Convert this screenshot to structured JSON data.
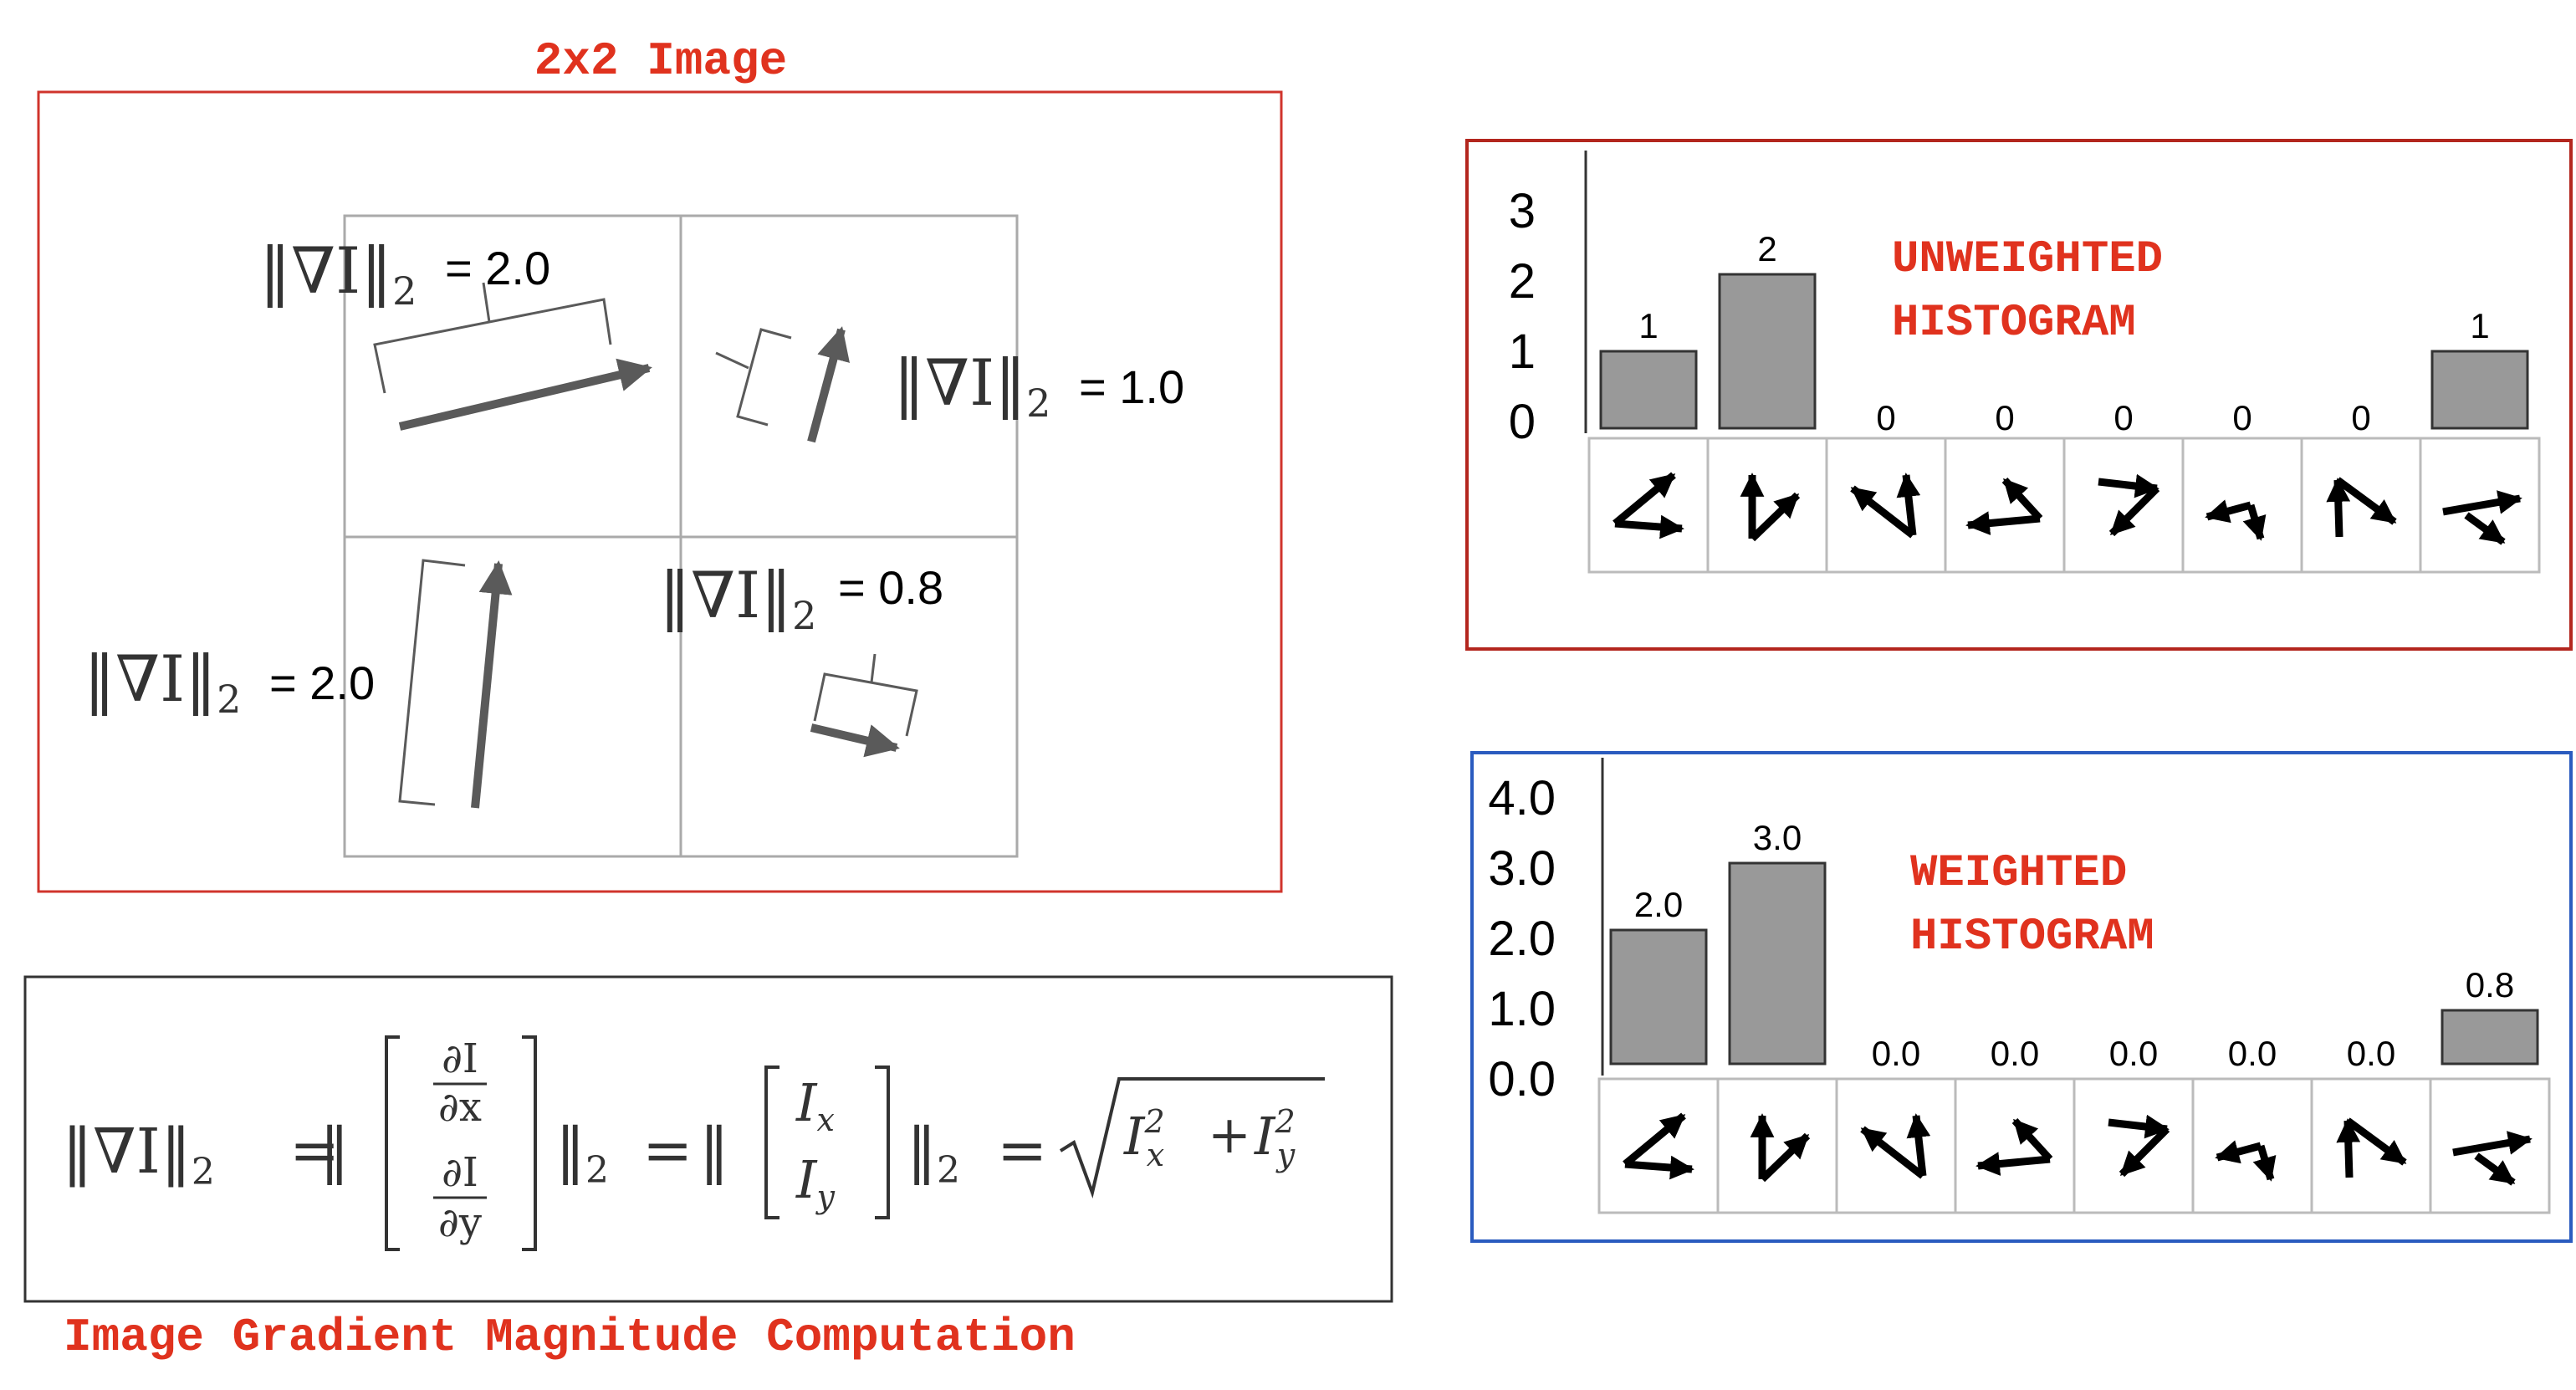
{
  "grid": {
    "title": "2x2 Image",
    "norm_symbol": "‖∇I‖",
    "norm_subscript": "2",
    "cells": [
      {
        "magnitude_text": "= 2.0",
        "magnitude": 2.0
      },
      {
        "magnitude_text": "= 1.0",
        "magnitude": 1.0
      },
      {
        "magnitude_text": "= 2.0",
        "magnitude": 2.0
      },
      {
        "magnitude_text": "= 0.8",
        "magnitude": 0.8
      }
    ]
  },
  "formula": {
    "caption": "Image Gradient Magnitude Computation",
    "lhs": "‖∇I‖",
    "sub": "2",
    "equals": "=",
    "partial_I": "∂I",
    "partial_x": "∂x",
    "partial_y": "∂y",
    "Ix": "I",
    "Ix_sub": "x",
    "Iy": "I",
    "Iy_sub": "y",
    "open_norm": "‖",
    "sqrt_expr": "I",
    "plus": "+",
    "sq": "2"
  },
  "unweighted": {
    "label_line1": "UNWEIGHTED",
    "label_line2": "HISTOGRAM",
    "y_ticks": [
      "3",
      "2",
      "1",
      "0"
    ],
    "value_labels": [
      "1",
      "2",
      "0",
      "0",
      "0",
      "0",
      "0",
      "1"
    ],
    "values": [
      1,
      2,
      0,
      0,
      0,
      0,
      0,
      1
    ],
    "ymax": 3,
    "frame_color": "#b3261e"
  },
  "weighted": {
    "label_line1": "WEIGHTED",
    "label_line2": "HISTOGRAM",
    "y_ticks": [
      "4.0",
      "3.0",
      "2.0",
      "1.0",
      "0.0"
    ],
    "value_labels": [
      "2.0",
      "3.0",
      "0.0",
      "0.0",
      "0.0",
      "0.0",
      "0.0",
      "0.8"
    ],
    "values": [
      2.0,
      3.0,
      0.0,
      0.0,
      0.0,
      0.0,
      0.0,
      0.8
    ],
    "ymax": 4,
    "frame_color": "#2a5bbf"
  },
  "colors": {
    "title_red": "#e0321e",
    "bar_gray": "#999999",
    "arrow_gray": "#5a5a5a"
  },
  "icons": [
    "orientation-bin-icon"
  ]
}
